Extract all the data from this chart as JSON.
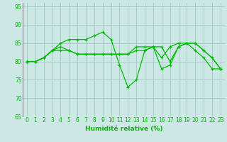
{
  "xlabel": "Humidité relative (%)",
  "background_color": "#cce8e4",
  "grid_color": "#aaccca",
  "line_color": "#00bb00",
  "ylim": [
    65,
    96
  ],
  "xlim": [
    -0.5,
    23.5
  ],
  "yticks": [
    65,
    70,
    75,
    80,
    85,
    90,
    95
  ],
  "xticks": [
    0,
    1,
    2,
    3,
    4,
    5,
    6,
    7,
    8,
    9,
    10,
    11,
    12,
    13,
    14,
    15,
    16,
    17,
    18,
    19,
    20,
    21,
    22,
    23
  ],
  "series": [
    [
      80,
      80,
      81,
      83,
      85,
      86,
      86,
      86,
      87,
      88,
      86,
      79,
      73,
      75,
      83,
      84,
      81,
      84,
      85,
      85,
      83,
      81,
      78,
      78
    ],
    [
      80,
      80,
      81,
      83,
      84,
      83,
      82,
      82,
      82,
      82,
      82,
      82,
      82,
      83,
      83,
      84,
      84,
      80,
      84,
      85,
      85,
      83,
      81,
      78
    ],
    [
      80,
      80,
      81,
      83,
      83,
      83,
      82,
      82,
      82,
      82,
      82,
      82,
      82,
      84,
      84,
      84,
      78,
      79,
      84,
      85,
      85,
      83,
      81,
      78
    ]
  ]
}
